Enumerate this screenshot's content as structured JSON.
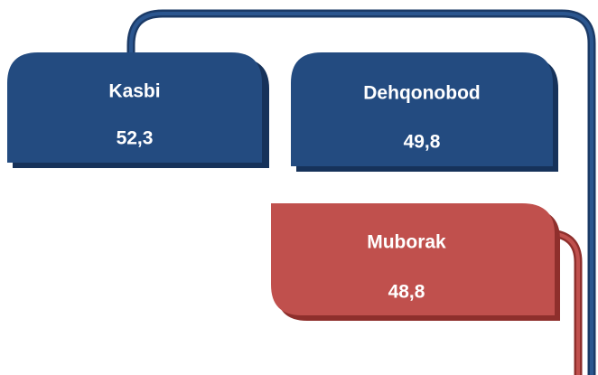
{
  "nodes": [
    {
      "label": "Kasbi",
      "value": "52,3"
    },
    {
      "label": "Dehqonobod",
      "value": "49,8"
    },
    {
      "label": "Muborak",
      "value": "48,8"
    }
  ]
}
